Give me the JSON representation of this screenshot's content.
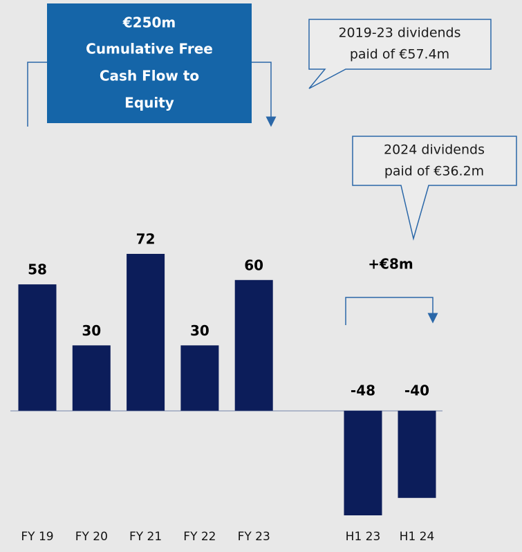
{
  "chart_data": {
    "type": "bar",
    "categories": [
      "FY 19",
      "FY 20",
      "FY 21",
      "FY 22",
      "FY 23",
      "H1 23",
      "H1 24"
    ],
    "values": [
      58,
      30,
      72,
      30,
      60,
      -48,
      -40
    ],
    "color": "#0c1d5a",
    "annotations": {
      "cumulative": [
        "€250m",
        "Cumulative Free",
        "Cash Flow to",
        "Equity"
      ],
      "dividends_2019_23": [
        "2019-23 dividends",
        "paid of €57.4m"
      ],
      "dividends_2024": [
        "2024 dividends",
        "paid of €36.2m"
      ],
      "h1_change": "+€8m"
    }
  }
}
